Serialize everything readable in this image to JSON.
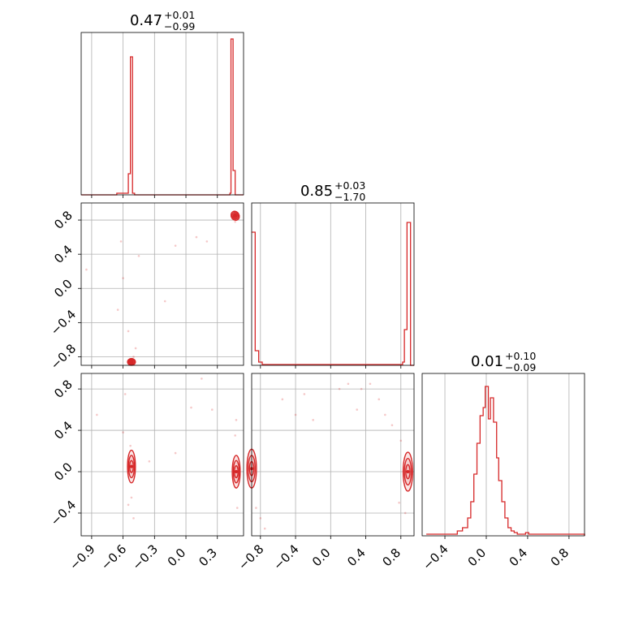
{
  "chart_data": {
    "type": "corner",
    "color": "#d62728",
    "grid": true,
    "panels": [
      {
        "id": "hist-0",
        "type": "histogram",
        "title": {
          "value": "0.47",
          "plus": "+0.01",
          "minus": "−0.99"
        },
        "xlim": [
          -1.0,
          0.55
        ],
        "bins": [
          [
            -1.0,
            0
          ],
          [
            -0.69,
            0
          ],
          [
            -0.66,
            0.01
          ],
          [
            -0.55,
            0.13
          ],
          [
            -0.53,
            0.85
          ],
          [
            -0.51,
            0.01
          ],
          [
            -0.49,
            0
          ],
          [
            0.42,
            0.01
          ],
          [
            0.43,
            0.96
          ],
          [
            0.45,
            0.15
          ],
          [
            0.47,
            0
          ],
          [
            0.55,
            0
          ]
        ]
      },
      {
        "id": "hist-1",
        "type": "histogram",
        "title": {
          "value": "0.85",
          "plus": "+0.03",
          "minus": "−1.70"
        },
        "xlim": [
          -0.9,
          0.95
        ],
        "bins": [
          [
            -0.9,
            0.82
          ],
          [
            -0.86,
            0.09
          ],
          [
            -0.82,
            0.02
          ],
          [
            -0.78,
            0.005
          ],
          [
            0.78,
            0.005
          ],
          [
            0.82,
            0.02
          ],
          [
            0.84,
            0.22
          ],
          [
            0.87,
            0.88
          ],
          [
            0.91,
            0
          ],
          [
            0.95,
            0
          ]
        ]
      },
      {
        "id": "hist-2",
        "type": "histogram",
        "title": {
          "value": "0.01",
          "plus": "+0.10",
          "minus": "−0.09"
        },
        "xlim": [
          -0.62,
          0.95
        ],
        "bins": [
          [
            -0.58,
            0.01
          ],
          [
            -0.46,
            0.01
          ],
          [
            -0.36,
            0.01
          ],
          [
            -0.28,
            0.03
          ],
          [
            -0.23,
            0.05
          ],
          [
            -0.18,
            0.11
          ],
          [
            -0.15,
            0.21
          ],
          [
            -0.12,
            0.38
          ],
          [
            -0.09,
            0.57
          ],
          [
            -0.06,
            0.74
          ],
          [
            -0.03,
            0.79
          ],
          [
            -0.01,
            0.92
          ],
          [
            0.02,
            0.72
          ],
          [
            0.04,
            0.85
          ],
          [
            0.07,
            0.7
          ],
          [
            0.1,
            0.48
          ],
          [
            0.12,
            0.34
          ],
          [
            0.15,
            0.21
          ],
          [
            0.18,
            0.11
          ],
          [
            0.21,
            0.05
          ],
          [
            0.24,
            0.03
          ],
          [
            0.27,
            0.02
          ],
          [
            0.3,
            0.01
          ],
          [
            0.33,
            0.01
          ],
          [
            0.38,
            0.02
          ],
          [
            0.41,
            0.01
          ],
          [
            0.55,
            0.01
          ],
          [
            0.65,
            0.01
          ],
          [
            0.75,
            0.01
          ],
          [
            0.85,
            0.01
          ],
          [
            0.95,
            0
          ]
        ]
      },
      {
        "id": "scatter-1-0",
        "type": "density2d",
        "xlim": [
          -1.0,
          0.55
        ],
        "ylim": [
          -0.9,
          1.0
        ],
        "ellipses": [
          [
            0.47,
            0.85,
            0.02,
            0.03,
            -30
          ],
          [
            -0.52,
            -0.86,
            0.02,
            0.02,
            0
          ]
        ],
        "points": [
          [
            -0.95,
            0.22
          ],
          [
            -0.62,
            0.55
          ],
          [
            -0.45,
            0.38
          ],
          [
            -0.6,
            0.12
          ],
          [
            -0.65,
            -0.25
          ],
          [
            -0.55,
            -0.5
          ],
          [
            -0.2,
            -0.15
          ],
          [
            -0.1,
            0.5
          ],
          [
            0.1,
            0.6
          ],
          [
            0.2,
            0.55
          ],
          [
            -0.48,
            -0.7
          ],
          [
            -0.5,
            -0.8
          ],
          [
            -0.53,
            -0.83
          ],
          [
            0.47,
            0.78
          ],
          [
            0.48,
            0.82
          ],
          [
            0.46,
            0.88
          ]
        ]
      },
      {
        "id": "scatter-2-0",
        "type": "density2d",
        "xlim": [
          -1.0,
          0.55
        ],
        "ylim": [
          -0.62,
          0.95
        ],
        "ellipses": [
          [
            -0.52,
            0.05,
            0.02,
            0.1,
            0
          ],
          [
            0.48,
            0.0,
            0.02,
            0.1,
            0
          ]
        ],
        "points": [
          [
            -0.85,
            0.55
          ],
          [
            -0.6,
            0.38
          ],
          [
            -0.58,
            0.75
          ],
          [
            -0.35,
            0.1
          ],
          [
            -0.1,
            0.18
          ],
          [
            0.05,
            0.62
          ],
          [
            0.15,
            0.9
          ],
          [
            0.25,
            0.6
          ],
          [
            -0.55,
            -0.32
          ],
          [
            -0.5,
            -0.45
          ],
          [
            -0.53,
            0.25
          ],
          [
            -0.52,
            -0.25
          ],
          [
            0.47,
            0.35
          ],
          [
            0.49,
            -0.35
          ],
          [
            0.48,
            0.5
          ],
          [
            0.47,
            -0.15
          ]
        ]
      },
      {
        "id": "scatter-2-1",
        "type": "density2d",
        "xlim": [
          -0.9,
          0.95
        ],
        "ylim": [
          -0.62,
          0.95
        ],
        "ellipses": [
          [
            -0.9,
            0.03,
            0.03,
            0.12,
            0
          ],
          [
            0.88,
            0.0,
            0.03,
            0.12,
            0
          ]
        ],
        "points": [
          [
            -0.55,
            0.7
          ],
          [
            -0.3,
            0.75
          ],
          [
            0.1,
            0.8
          ],
          [
            0.2,
            0.85
          ],
          [
            0.35,
            0.8
          ],
          [
            0.45,
            0.85
          ],
          [
            -0.4,
            0.55
          ],
          [
            0.55,
            0.7
          ],
          [
            0.62,
            0.55
          ],
          [
            0.7,
            0.45
          ],
          [
            0.8,
            0.3
          ],
          [
            0.78,
            -0.3
          ],
          [
            0.85,
            -0.4
          ],
          [
            -0.85,
            -0.35
          ],
          [
            -0.8,
            -0.45
          ],
          [
            -0.75,
            -0.55
          ],
          [
            -0.2,
            0.5
          ],
          [
            0.3,
            0.6
          ]
        ]
      }
    ],
    "axes": {
      "x0": {
        "ticks": [
          -0.9,
          -0.6,
          -0.3,
          0.0,
          0.3
        ],
        "labels": [
          "−0.9",
          "−0.6",
          "−0.3",
          "0.0",
          "0.3"
        ]
      },
      "x1": {
        "ticks": [
          -0.8,
          -0.4,
          0.0,
          0.4,
          0.8
        ],
        "labels": [
          "−0.8",
          "−0.4",
          "0.0",
          "0.4",
          "0.8"
        ]
      },
      "x2": {
        "ticks": [
          -0.4,
          0.0,
          0.4,
          0.8
        ],
        "labels": [
          "−0.4",
          "0.0",
          "0.4",
          "0.8"
        ]
      },
      "y1": {
        "ticks": [
          -0.8,
          -0.4,
          0.0,
          0.4,
          0.8
        ],
        "labels": [
          "−0.8",
          "−0.4",
          "0.0",
          "0.4",
          "0.8"
        ]
      },
      "y2": {
        "ticks": [
          -0.4,
          0.0,
          0.4,
          0.8
        ],
        "labels": [
          "−0.4",
          "0.0",
          "0.4",
          "0.8"
        ]
      }
    }
  }
}
